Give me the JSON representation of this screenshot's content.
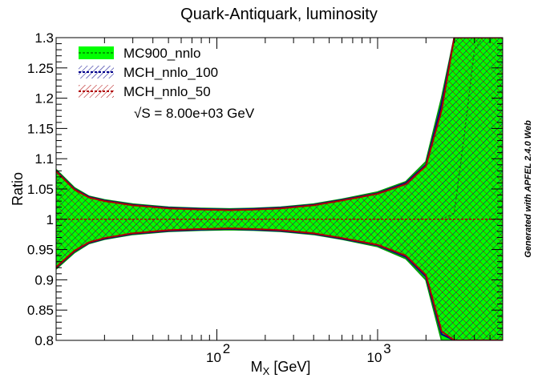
{
  "chart_data": {
    "type": "area",
    "title": "Quark-Antiquark, luminosity",
    "xlabel": "M_X [GeV]",
    "ylabel": "Ratio",
    "xscale": "log",
    "xlim": [
      10,
      6000
    ],
    "ylim": [
      0.8,
      1.3
    ],
    "yticks": [
      "0.8",
      "0.85",
      "0.9",
      "0.95",
      "1",
      "1.05",
      "1.1",
      "1.15",
      "1.2",
      "1.25",
      "1.3"
    ],
    "xtick_labels": [
      {
        "base": "10",
        "exp": "2",
        "value": 100
      },
      {
        "base": "10",
        "exp": "3",
        "value": 1000
      }
    ],
    "legend_position": "top-left",
    "annotation": "√S = 8.00e+03 GeV",
    "side_label": "Generated with APFEL 2.4.0 Web",
    "x": [
      10,
      13,
      16,
      20,
      30,
      50,
      80,
      120,
      170,
      250,
      400,
      600,
      1000,
      1500,
      2000,
      2500,
      3000,
      3500,
      4000,
      4500,
      5000,
      5500,
      6000
    ],
    "series": [
      {
        "name": "MC900_nnlo",
        "color": "#00ff00",
        "edge": "#00a000",
        "central": [
          1.0,
          1.0,
          1.0,
          1.0,
          1.0,
          1.0,
          1.0,
          1.0,
          1.0,
          1.0,
          1.0,
          1.0,
          1.0,
          1.0,
          1.0,
          1.0,
          1.01,
          1.15,
          1.28,
          1.3,
          1.3,
          1.3,
          1.3
        ],
        "upper": [
          1.082,
          1.052,
          1.038,
          1.032,
          1.025,
          1.02,
          1.018,
          1.017,
          1.018,
          1.02,
          1.025,
          1.033,
          1.045,
          1.062,
          1.095,
          1.2,
          1.3,
          1.3,
          1.3,
          1.3,
          1.3,
          1.3,
          1.3
        ],
        "lower": [
          0.918,
          0.945,
          0.96,
          0.967,
          0.975,
          0.98,
          0.982,
          0.983,
          0.982,
          0.98,
          0.975,
          0.967,
          0.955,
          0.935,
          0.9,
          0.8,
          0.8,
          0.8,
          0.8,
          0.8,
          0.8,
          0.8,
          0.8
        ]
      },
      {
        "name": "MCH_nnlo_100",
        "color": "#00008b",
        "edge": "#00008b",
        "central": [
          1.0,
          1.0,
          1.0,
          1.0,
          1.0,
          1.0,
          1.0,
          1.0,
          1.0,
          1.0,
          1.0,
          1.0,
          1.0,
          1.0,
          1.0,
          1.0,
          1.0,
          1.0,
          1.0,
          1.0,
          1.0,
          1.0,
          1.0
        ],
        "upper": [
          1.08,
          1.05,
          1.037,
          1.031,
          1.024,
          1.019,
          1.017,
          1.016,
          1.017,
          1.019,
          1.024,
          1.032,
          1.043,
          1.06,
          1.09,
          1.19,
          1.3,
          1.3,
          1.3,
          1.3,
          1.3,
          1.3,
          1.3
        ],
        "lower": [
          0.92,
          0.947,
          0.961,
          0.968,
          0.976,
          0.981,
          0.983,
          0.984,
          0.983,
          0.981,
          0.976,
          0.968,
          0.957,
          0.938,
          0.905,
          0.81,
          0.8,
          0.8,
          0.8,
          0.8,
          0.8,
          0.8,
          0.8
        ]
      },
      {
        "name": "MCH_nnlo_50",
        "color": "#b00000",
        "edge": "#b00000",
        "central": [
          1.0,
          1.0,
          1.0,
          1.0,
          1.0,
          1.0,
          1.0,
          1.0,
          1.0,
          1.0,
          1.0,
          1.0,
          1.0,
          1.0,
          1.0,
          1.0,
          1.0,
          1.0,
          1.0,
          1.0,
          1.0,
          1.0,
          1.0
        ],
        "upper": [
          1.079,
          1.049,
          1.036,
          1.03,
          1.023,
          1.018,
          1.016,
          1.015,
          1.016,
          1.018,
          1.023,
          1.031,
          1.042,
          1.058,
          1.088,
          1.18,
          1.3,
          1.3,
          1.3,
          1.3,
          1.3,
          1.3,
          1.3
        ],
        "lower": [
          0.921,
          0.948,
          0.962,
          0.969,
          0.977,
          0.982,
          0.984,
          0.985,
          0.984,
          0.982,
          0.977,
          0.969,
          0.958,
          0.94,
          0.908,
          0.815,
          0.8,
          0.8,
          0.8,
          0.8,
          0.8,
          0.8,
          0.8
        ]
      }
    ]
  }
}
